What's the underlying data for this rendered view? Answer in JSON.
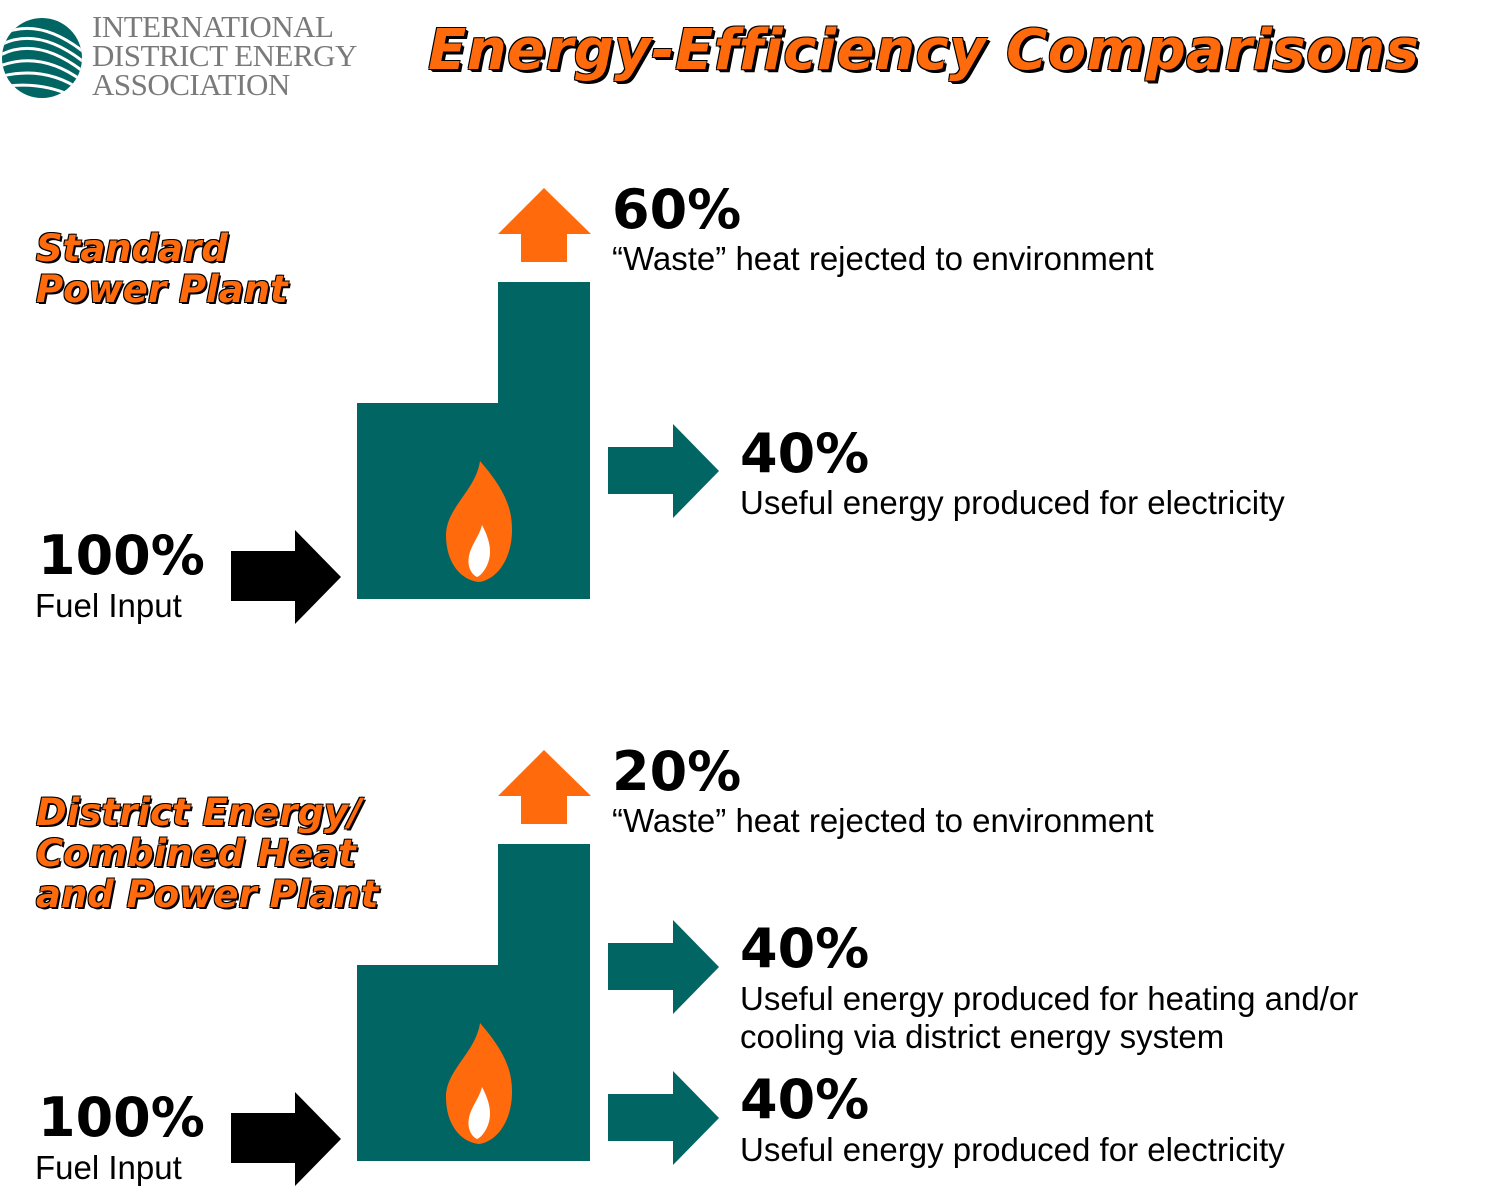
{
  "logo": {
    "lines": [
      "INTERNATIONAL",
      "DISTRICT ENERGY",
      "ASSOCIATION"
    ],
    "icon": "swirl-globe-icon"
  },
  "title": "Energy-Efficiency Comparisons",
  "colors": {
    "teal": "#006563",
    "orange": "#ff6a0d",
    "black": "#000000",
    "logo_gray": "#7a7a7a"
  },
  "standard": {
    "title_lines": [
      "Standard",
      "Power Plant"
    ],
    "input_pct": "100%",
    "input_label": "Fuel Input",
    "waste_pct": "60%",
    "waste_label": "“Waste” heat rejected to environment",
    "electric_pct": "40%",
    "electric_label": "Useful energy produced for electricity"
  },
  "chp": {
    "title_lines": [
      "District Energy/",
      "Combined Heat",
      "and Power Plant"
    ],
    "input_pct": "100%",
    "input_label": "Fuel Input",
    "waste_pct": "20%",
    "waste_label": "“Waste” heat rejected to environment",
    "heating_pct": "40%",
    "heating_label_lines": [
      "Useful energy produced for heating and/or",
      "cooling via district energy system"
    ],
    "electric_pct": "40%",
    "electric_label": "Useful energy produced for electricity"
  }
}
